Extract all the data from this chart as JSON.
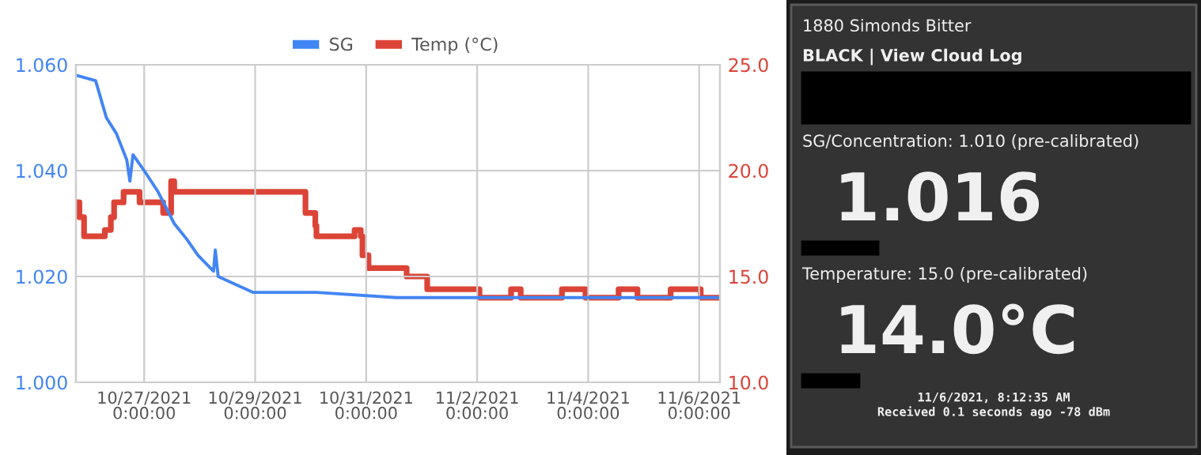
{
  "chart_data": [
    {
      "type": "line",
      "xlim": [
        "2021-10-25T18:30",
        "2021-11-06T09:00"
      ],
      "xticks": [
        {
          "value": "2021-10-27",
          "label": "10/27/2021\n0:00:00"
        },
        {
          "value": "2021-10-29",
          "label": "10/29/2021\n0:00:00"
        },
        {
          "value": "2021-10-31",
          "label": "10/31/2021\n0:00:00"
        },
        {
          "value": "2021-11-02",
          "label": "11/2/2021\n0:00:00"
        },
        {
          "value": "2021-11-04",
          "label": "11/4/2021\n0:00:00"
        },
        {
          "value": "2021-11-06",
          "label": "11/6/2021\n0:00:00"
        }
      ],
      "ylim": [
        1.0,
        1.06
      ],
      "yticks": [
        {
          "value": 1.0,
          "label": "1.000"
        },
        {
          "value": 1.02,
          "label": "1.020"
        },
        {
          "value": 1.04,
          "label": "1.040"
        },
        {
          "value": 1.06,
          "label": "1.060"
        }
      ],
      "y2lim": [
        10,
        25
      ],
      "y2ticks": [
        {
          "value": 10,
          "label": "10.0"
        },
        {
          "value": 15,
          "label": "15.0"
        },
        {
          "value": 20,
          "label": "20.0"
        },
        {
          "value": 25,
          "label": "25.0"
        }
      ],
      "grid": true,
      "legend": "top",
      "series": [
        {
          "name": "SG",
          "color": "#4285f4",
          "type": "line",
          "x": [
            "2021-10-25T18:36",
            "2021-10-26T03:00",
            "2021-10-26T07:40",
            "2021-10-26T12:00",
            "2021-10-26T16:30",
            "2021-10-26T17:50",
            "2021-10-26T19:10",
            "2021-10-27T00:00",
            "2021-10-27T06:00",
            "2021-10-27T13:00",
            "2021-10-27T18:30",
            "2021-10-27T23:15",
            "2021-10-28T06:00",
            "2021-10-28T06:45",
            "2021-10-28T08:00",
            "2021-10-28T13:00",
            "2021-10-28T23:00",
            "2021-10-29T14:30",
            "2021-10-30T02:30",
            "2021-10-31T13:00",
            "2021-11-06T09:00"
          ],
          "values": [
            1.058,
            1.057,
            1.05,
            1.047,
            1.042,
            1.038,
            1.043,
            1.04,
            1.036,
            1.03,
            1.027,
            1.024,
            1.021,
            1.025,
            1.02,
            1.019,
            1.017,
            1.017,
            1.017,
            1.016,
            1.016
          ]
        },
        {
          "name": "Temp (°C)",
          "color": "#db4437",
          "type": "step",
          "axis": "y2",
          "x": [
            "2021-10-25T18:36",
            "2021-10-25T20:00",
            "2021-10-25T22:00",
            "2021-10-26T07:00",
            "2021-10-26T09:36",
            "2021-10-26T11:00",
            "2021-10-26T15:06",
            "2021-10-26T22:00",
            "2021-10-27T08:12",
            "2021-10-27T11:40",
            "2021-10-27T13:00",
            "2021-10-29T21:45",
            "2021-10-30T02:00",
            "2021-10-30T02:30",
            "2021-10-30T19:00",
            "2021-10-30T21:40",
            "2021-10-30T22:24",
            "2021-10-31T01:00",
            "2021-10-31T17:30",
            "2021-11-01T02:24",
            "2021-11-02T01:00",
            "2021-11-02T14:40",
            "2021-11-02T18:50",
            "2021-11-03T12:40",
            "2021-11-03T22:50",
            "2021-11-04T13:10",
            "2021-11-04T21:20",
            "2021-11-05T11:40",
            "2021-11-06T00:40",
            "2021-11-06T09:00"
          ],
          "values": [
            18.5,
            17.8,
            16.9,
            17.2,
            17.8,
            18.5,
            19.0,
            18.5,
            18.0,
            19.5,
            19.0,
            18.0,
            17.4,
            16.9,
            17.2,
            16.9,
            16.0,
            15.4,
            15.0,
            14.4,
            14.0,
            14.4,
            14.0,
            14.4,
            14.0,
            14.4,
            14.0,
            14.4,
            14.0,
            14.0
          ]
        }
      ]
    },
    {
      "type": "other",
      "annotations": [
        "1880 Simonds Bitter",
        "BLACK | View Cloud Log",
        "SG/Concentration: 1.010 (pre-calibrated)",
        "1.016",
        "Temperature: 15.0 (pre-calibrated)",
        "14.0°C",
        "11/6/2021, 8:12:35 AM",
        "Received 0.1 seconds ago -78 dBm"
      ]
    }
  ]
}
